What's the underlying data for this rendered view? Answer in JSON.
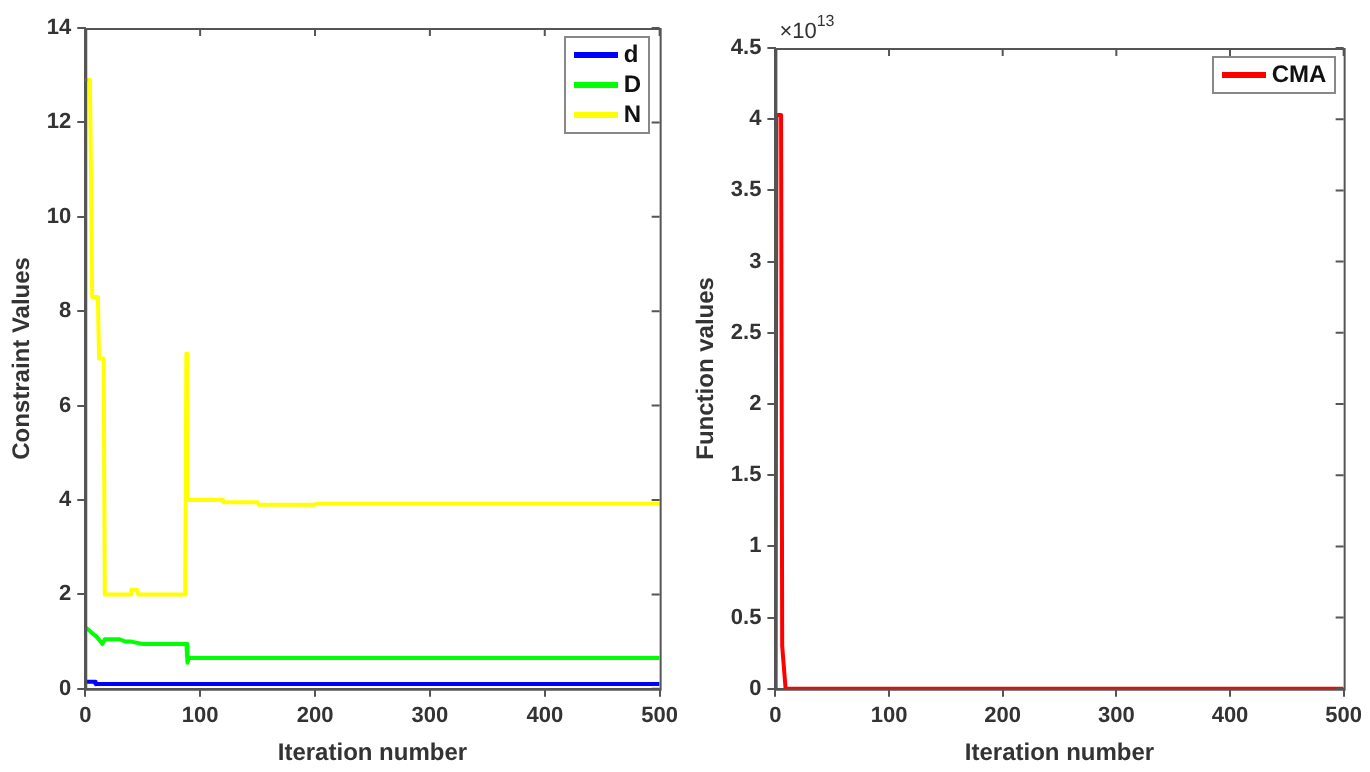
{
  "chart_data": [
    {
      "type": "line",
      "xlabel": "Iteration number",
      "ylabel": "Constraint Values",
      "xlim": [
        0,
        500
      ],
      "xticks": [
        0,
        100,
        200,
        300,
        400,
        500
      ],
      "ylim": [
        0,
        14
      ],
      "yticks": [
        0,
        2,
        4,
        6,
        8,
        10,
        12,
        14
      ],
      "legend": "top right",
      "grid": false,
      "marker": "none",
      "line_style": "solid",
      "series": [
        {
          "name": "d",
          "color": "#0000ff",
          "x": [
            0,
            8,
            9,
            500
          ],
          "values": [
            0.15,
            0.15,
            0.1,
            0.1
          ]
        },
        {
          "name": "D",
          "color": "#00ff00",
          "x": [
            0,
            3,
            5,
            10,
            15,
            17,
            20,
            30,
            35,
            40,
            50,
            88,
            89,
            90,
            500
          ],
          "values": [
            1.3,
            1.25,
            1.2,
            1.1,
            0.95,
            1.05,
            1.05,
            1.05,
            1.0,
            1.0,
            0.95,
            0.95,
            0.55,
            0.65,
            0.65
          ]
        },
        {
          "name": "N",
          "color": "#ffff00",
          "x": [
            0,
            4,
            5,
            6,
            7,
            11,
            12,
            16,
            17,
            39,
            40,
            45,
            46,
            87,
            88,
            89,
            90,
            120,
            121,
            150,
            151,
            200,
            201,
            500
          ],
          "values": [
            12.9,
            12.9,
            10.9,
            8.3,
            8.3,
            8.3,
            7.0,
            7.0,
            2.0,
            2.0,
            2.1,
            2.1,
            2.0,
            2.0,
            7.1,
            4.0,
            4.0,
            4.0,
            3.95,
            3.95,
            3.9,
            3.9,
            3.92,
            3.92
          ]
        }
      ]
    },
    {
      "type": "line",
      "xlabel": "Iteration number",
      "ylabel": "Function values",
      "xlim": [
        0,
        500
      ],
      "xticks": [
        0,
        100,
        200,
        300,
        400,
        500
      ],
      "ylim": [
        0,
        4.5
      ],
      "yticks": [
        0,
        0.5,
        1,
        1.5,
        2,
        2.5,
        3,
        3.5,
        4,
        4.5
      ],
      "legend": "top right",
      "grid": false,
      "marker": "none",
      "line_style": "solid",
      "annotations": [
        "×10$^{13}$"
      ],
      "series": [
        {
          "name": "CMA",
          "color": "#ff0000",
          "x": [
            0,
            1,
            5,
            6,
            7,
            9,
            500
          ],
          "values": [
            0,
            4.03,
            4.03,
            0.3,
            0.3,
            0,
            0
          ]
        }
      ]
    }
  ]
}
